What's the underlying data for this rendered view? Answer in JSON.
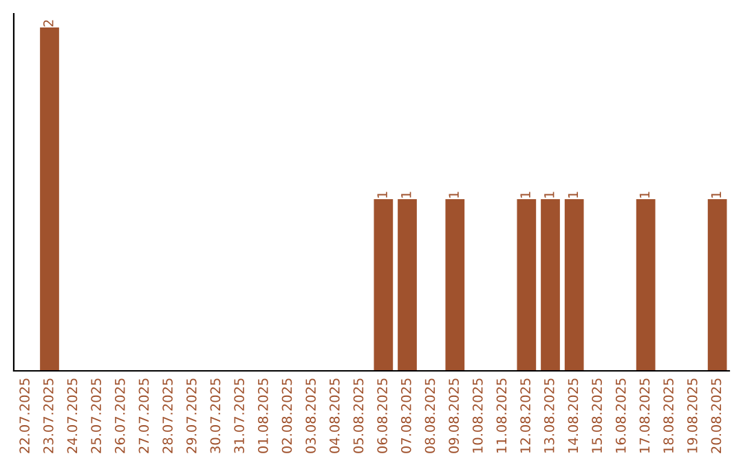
{
  "chart_data": {
    "type": "bar",
    "categories": [
      "22.07.2025",
      "23.07.2025",
      "24.07.2025",
      "25.07.2025",
      "26.07.2025",
      "27.07.2025",
      "28.07.2025",
      "29.07.2025",
      "30.07.2025",
      "31.07.2025",
      "01.08.2025",
      "02.08.2025",
      "03.08.2025",
      "04.08.2025",
      "05.08.2025",
      "06.08.2025",
      "07.08.2025",
      "08.08.2025",
      "09.08.2025",
      "10.08.2025",
      "11.08.2025",
      "12.08.2025",
      "13.08.2025",
      "14.08.2025",
      "15.08.2025",
      "16.08.2025",
      "17.08.2025",
      "18.08.2025",
      "19.08.2025",
      "20.08.2025"
    ],
    "values": [
      0,
      2,
      0,
      0,
      0,
      0,
      0,
      0,
      0,
      0,
      0,
      0,
      0,
      0,
      0,
      1,
      1,
      0,
      1,
      0,
      0,
      1,
      1,
      1,
      0,
      0,
      1,
      0,
      0,
      1
    ],
    "value_labels": [
      null,
      "2",
      null,
      null,
      null,
      null,
      null,
      null,
      null,
      null,
      null,
      null,
      null,
      null,
      null,
      "1",
      "1",
      null,
      "1",
      null,
      null,
      "1",
      "1",
      "1",
      null,
      null,
      "1",
      null,
      null,
      "1"
    ],
    "color": "#a0522d",
    "ylim": [
      0,
      2.08
    ],
    "tick_labels": "x",
    "grid": false,
    "legend": false
  }
}
